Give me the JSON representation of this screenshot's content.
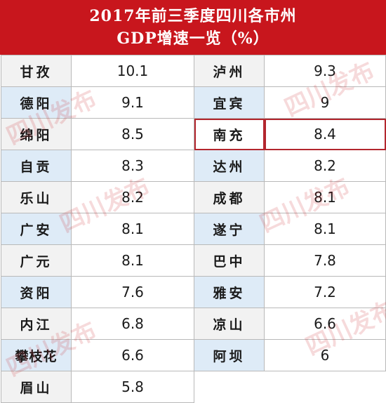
{
  "title": {
    "line1": "2017年前三季度四川各市州",
    "line2": "GDP增速一览（%）"
  },
  "rows": [
    {
      "l_city": "甘孜",
      "l_val": "10.1",
      "r_city": "泸州",
      "r_val": "9.3"
    },
    {
      "l_city": "德阳",
      "l_val": "9.1",
      "r_city": "宜宾",
      "r_val": "9"
    },
    {
      "l_city": "绵阳",
      "l_val": "8.5",
      "r_city": "南充",
      "r_val": "8.4"
    },
    {
      "l_city": "自贡",
      "l_val": "8.3",
      "r_city": "达州",
      "r_val": "8.2"
    },
    {
      "l_city": "乐山",
      "l_val": "8.2",
      "r_city": "成都",
      "r_val": "8.1"
    },
    {
      "l_city": "广安",
      "l_val": "8.1",
      "r_city": "遂宁",
      "r_val": "8.1"
    },
    {
      "l_city": "广元",
      "l_val": "8.1",
      "r_city": "巴中",
      "r_val": "7.8"
    },
    {
      "l_city": "资阳",
      "l_val": "7.6",
      "r_city": "雅安",
      "r_val": "7.2"
    },
    {
      "l_city": "内江",
      "l_val": "6.8",
      "r_city": "凉山",
      "r_val": "6.6"
    },
    {
      "l_city": "攀枝花",
      "l_val": "6.6",
      "r_city": "阿坝",
      "r_val": "6"
    },
    {
      "l_city": "眉山",
      "l_val": "5.8",
      "r_city": "",
      "r_val": ""
    }
  ],
  "watermark": "四川发布",
  "colors": {
    "header": "#c8161d",
    "highlight_border": "#b3262e",
    "blue_cell": "#deebf7",
    "gray_cell": "#f2f2f2"
  }
}
